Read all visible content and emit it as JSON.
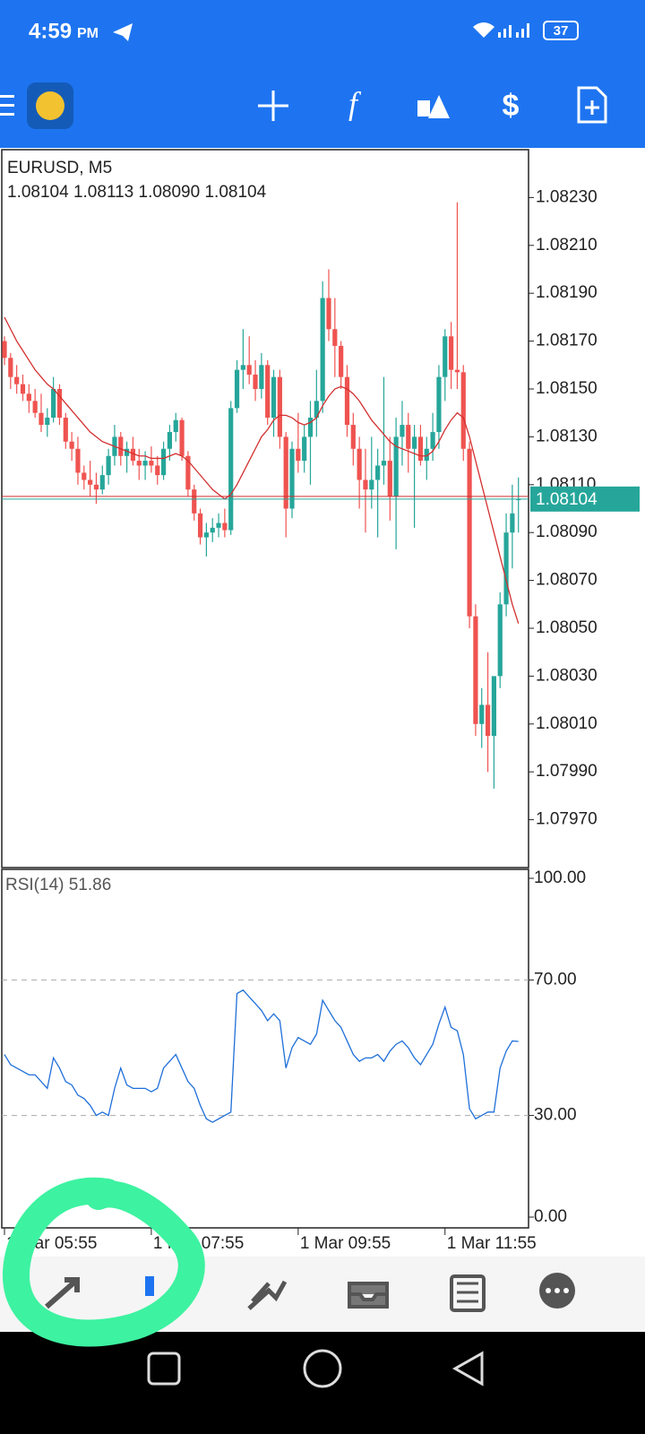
{
  "status_bar": {
    "time": "4:59",
    "ampm": "PM",
    "battery": "37"
  },
  "chart_data": [
    {
      "type": "candlestick",
      "symbol_label": "EURUSD, M5",
      "ohlc_label": "1.08104 1.08113 1.08090 1.08104",
      "current_price": 1.08104,
      "up_color": "#26a69a",
      "down_color": "#ef5350",
      "ma_color": "#d32f2f",
      "ylim": [
        1.0795,
        1.0825
      ],
      "yticks": [
        {
          "value": 1.0823,
          "label": "1.08230"
        },
        {
          "value": 1.0821,
          "label": "1.08210"
        },
        {
          "value": 1.0819,
          "label": "1.08190"
        },
        {
          "value": 1.0817,
          "label": "1.08170"
        },
        {
          "value": 1.0815,
          "label": "1.08150"
        },
        {
          "value": 1.0813,
          "label": "1.08130"
        },
        {
          "value": 1.0811,
          "label": "1.08110"
        },
        {
          "value": 1.0809,
          "label": "1.08090"
        },
        {
          "value": 1.0807,
          "label": "1.08070"
        },
        {
          "value": 1.0805,
          "label": "1.08050"
        },
        {
          "value": 1.0803,
          "label": "1.08030"
        },
        {
          "value": 1.0801,
          "label": "1.08010"
        },
        {
          "value": 1.0799,
          "label": "1.07990"
        },
        {
          "value": 1.0797,
          "label": "1.07970"
        }
      ],
      "candles": [
        [
          1.0817,
          1.08172,
          1.0816,
          1.08163
        ],
        [
          1.08163,
          1.08165,
          1.0815,
          1.08155
        ],
        [
          1.08155,
          1.0816,
          1.08148,
          1.08152
        ],
        [
          1.08152,
          1.08156,
          1.08145,
          1.08148
        ],
        [
          1.08148,
          1.08152,
          1.0814,
          1.08145
        ],
        [
          1.08145,
          1.0815,
          1.08138,
          1.0814
        ],
        [
          1.0814,
          1.08148,
          1.08132,
          1.08135
        ],
        [
          1.08135,
          1.08142,
          1.0813,
          1.08138
        ],
        [
          1.08138,
          1.08155,
          1.08136,
          1.0815
        ],
        [
          1.0815,
          1.08152,
          1.08135,
          1.08138
        ],
        [
          1.08138,
          1.0814,
          1.08125,
          1.08128
        ],
        [
          1.08128,
          1.08132,
          1.0812,
          1.08125
        ],
        [
          1.08125,
          1.0813,
          1.0811,
          1.08115
        ],
        [
          1.08115,
          1.08118,
          1.08108,
          1.08112
        ],
        [
          1.08112,
          1.0812,
          1.08105,
          1.0811
        ],
        [
          1.0811,
          1.08115,
          1.08102,
          1.08108
        ],
        [
          1.08108,
          1.08118,
          1.08106,
          1.08114
        ],
        [
          1.08114,
          1.08125,
          1.0811,
          1.08122
        ],
        [
          1.08122,
          1.08135,
          1.08118,
          1.0813
        ],
        [
          1.0813,
          1.08132,
          1.08118,
          1.08122
        ],
        [
          1.08122,
          1.08128,
          1.08115,
          1.08125
        ],
        [
          1.08125,
          1.0813,
          1.08118,
          1.0812
        ],
        [
          1.0812,
          1.08125,
          1.08112,
          1.08118
        ],
        [
          1.08118,
          1.08124,
          1.08112,
          1.0812
        ],
        [
          1.0812,
          1.08126,
          1.08115,
          1.08118
        ],
        [
          1.08118,
          1.08122,
          1.0811,
          1.08114
        ],
        [
          1.08114,
          1.08128,
          1.08112,
          1.08125
        ],
        [
          1.08125,
          1.08135,
          1.0812,
          1.08132
        ],
        [
          1.08132,
          1.0814,
          1.08128,
          1.08137
        ],
        [
          1.08137,
          1.08138,
          1.0812,
          1.08122
        ],
        [
          1.08122,
          1.08124,
          1.08105,
          1.08108
        ],
        [
          1.08108,
          1.0811,
          1.08095,
          1.08098
        ],
        [
          1.08098,
          1.081,
          1.08085,
          1.08088
        ],
        [
          1.08088,
          1.08094,
          1.0808,
          1.0809
        ],
        [
          1.0809,
          1.08096,
          1.08086,
          1.08092
        ],
        [
          1.08092,
          1.08098,
          1.08088,
          1.08094
        ],
        [
          1.08094,
          1.081,
          1.08088,
          1.08091
        ],
        [
          1.08091,
          1.08145,
          1.08089,
          1.08142
        ],
        [
          1.08142,
          1.08162,
          1.0814,
          1.08158
        ],
        [
          1.08158,
          1.08175,
          1.0815,
          1.0816
        ],
        [
          1.0816,
          1.08172,
          1.08152,
          1.08156
        ],
        [
          1.08156,
          1.08162,
          1.08145,
          1.0815
        ],
        [
          1.0815,
          1.08165,
          1.08146,
          1.0816
        ],
        [
          1.0816,
          1.08162,
          1.08135,
          1.08138
        ],
        [
          1.08138,
          1.08158,
          1.0813,
          1.08155
        ],
        [
          1.08155,
          1.08158,
          1.08125,
          1.0813
        ],
        [
          1.0813,
          1.08132,
          1.08088,
          1.081
        ],
        [
          1.081,
          1.08128,
          1.08096,
          1.08125
        ],
        [
          1.08125,
          1.0814,
          1.08115,
          1.0812
        ],
        [
          1.0812,
          1.08135,
          1.08115,
          1.0813
        ],
        [
          1.0813,
          1.08145,
          1.0811,
          1.08138
        ],
        [
          1.08138,
          1.08158,
          1.0813,
          1.08145
        ],
        [
          1.08145,
          1.08195,
          1.0814,
          1.08188
        ],
        [
          1.08188,
          1.082,
          1.0817,
          1.08175
        ],
        [
          1.08175,
          1.08188,
          1.08155,
          1.08168
        ],
        [
          1.08168,
          1.0817,
          1.0815,
          1.08155
        ],
        [
          1.08155,
          1.0816,
          1.0813,
          1.08135
        ],
        [
          1.08135,
          1.0814,
          1.08118,
          1.08125
        ],
        [
          1.08125,
          1.0813,
          1.081,
          1.08112
        ],
        [
          1.08112,
          1.08125,
          1.0809,
          1.08108
        ],
        [
          1.08108,
          1.0813,
          1.081,
          1.08112
        ],
        [
          1.08112,
          1.08125,
          1.08088,
          1.08118
        ],
        [
          1.08118,
          1.08155,
          1.0811,
          1.0812
        ],
        [
          1.0812,
          1.0813,
          1.08095,
          1.08105
        ],
        [
          1.08105,
          1.08138,
          1.08083,
          1.0813
        ],
        [
          1.0813,
          1.08145,
          1.08118,
          1.08135
        ],
        [
          1.08135,
          1.0814,
          1.08115,
          1.08125
        ],
        [
          1.08125,
          1.08135,
          1.08092,
          1.0813
        ],
        [
          1.0813,
          1.08135,
          1.08118,
          1.0812
        ],
        [
          1.0812,
          1.0813,
          1.08112,
          1.08125
        ],
        [
          1.08125,
          1.0814,
          1.0812,
          1.08132
        ],
        [
          1.08132,
          1.0816,
          1.08125,
          1.08155
        ],
        [
          1.08155,
          1.08175,
          1.08145,
          1.08172
        ],
        [
          1.08172,
          1.08178,
          1.0815,
          1.08158
        ],
        [
          1.08158,
          1.08228,
          1.0815,
          1.08157
        ],
        [
          1.08157,
          1.0816,
          1.0812,
          1.08125
        ],
        [
          1.08125,
          1.08128,
          1.0805,
          1.08055
        ],
        [
          1.08055,
          1.0806,
          1.08005,
          1.0801
        ],
        [
          1.0801,
          1.08025,
          1.08,
          1.08018
        ],
        [
          1.08018,
          1.0804,
          1.0799,
          1.08005
        ],
        [
          1.08005,
          1.0803,
          1.07983,
          1.0803
        ],
        [
          1.0803,
          1.08065,
          1.08025,
          1.0806
        ],
        [
          1.0806,
          1.08098,
          1.08055,
          1.0809
        ],
        [
          1.0809,
          1.0811,
          1.08075,
          1.08098
        ],
        [
          1.08104,
          1.08113,
          1.0809,
          1.08104
        ]
      ],
      "ma": [
        1.0818,
        1.08175,
        1.0817,
        1.08166,
        1.08162,
        1.08158,
        1.08155,
        1.08152,
        1.0815,
        1.08147,
        1.08144,
        1.08141,
        1.08138,
        1.08135,
        1.08132,
        1.0813,
        1.08128,
        1.08127,
        1.08126,
        1.08125,
        1.08124,
        1.08123,
        1.08122,
        1.08122,
        1.08121,
        1.08121,
        1.08121,
        1.08122,
        1.08123,
        1.08122,
        1.0812,
        1.08117,
        1.08114,
        1.08111,
        1.08108,
        1.08106,
        1.08104,
        1.08106,
        1.0811,
        1.08115,
        1.0812,
        1.08125,
        1.0813,
        1.08133,
        1.08137,
        1.08139,
        1.08139,
        1.08138,
        1.08136,
        1.08135,
        1.08136,
        1.08138,
        1.08143,
        1.08147,
        1.0815,
        1.08151,
        1.0815,
        1.08148,
        1.08145,
        1.08141,
        1.08137,
        1.08134,
        1.08131,
        1.08128,
        1.08126,
        1.08125,
        1.08124,
        1.08123,
        1.08122,
        1.08122,
        1.08124,
        1.08128,
        1.08133,
        1.08137,
        1.0814,
        1.08138,
        1.0813,
        1.0812,
        1.0811,
        1.081,
        1.0809,
        1.0808,
        1.0807,
        1.0806,
        1.08052
      ]
    },
    {
      "type": "line",
      "label": "RSI(14) 51.86",
      "color": "#1e6fd9",
      "ylim": [
        0,
        100
      ],
      "yticks": [
        {
          "value": 100,
          "label": "100.00"
        },
        {
          "value": 70,
          "label": "70.00"
        },
        {
          "value": 30,
          "label": "30.00"
        },
        {
          "value": 0,
          "label": "0.00"
        }
      ],
      "dashed_levels": [
        70,
        30
      ],
      "x_labels": [
        "1 Mar 05:55",
        "1 Mar 07:55",
        "1 Mar 09:55",
        "1 Mar 11:55"
      ],
      "values": [
        48,
        45,
        44,
        43,
        42,
        42,
        40,
        38,
        47,
        44,
        40,
        39,
        36,
        35,
        33,
        30,
        31,
        30,
        38,
        44,
        39,
        38,
        38,
        38,
        37,
        38,
        44,
        46,
        48,
        44,
        40,
        38,
        33,
        29,
        28,
        29,
        30,
        31,
        66,
        67,
        65,
        63,
        61,
        58,
        60,
        58,
        44,
        50,
        53,
        52,
        51,
        54,
        64,
        61,
        58,
        56,
        52,
        48,
        46,
        47,
        47,
        48,
        46,
        49,
        51,
        52,
        50,
        47,
        45,
        48,
        51,
        57,
        62,
        56,
        55,
        48,
        32,
        29,
        30,
        31,
        31,
        44,
        49,
        52,
        51.86
      ]
    }
  ]
}
